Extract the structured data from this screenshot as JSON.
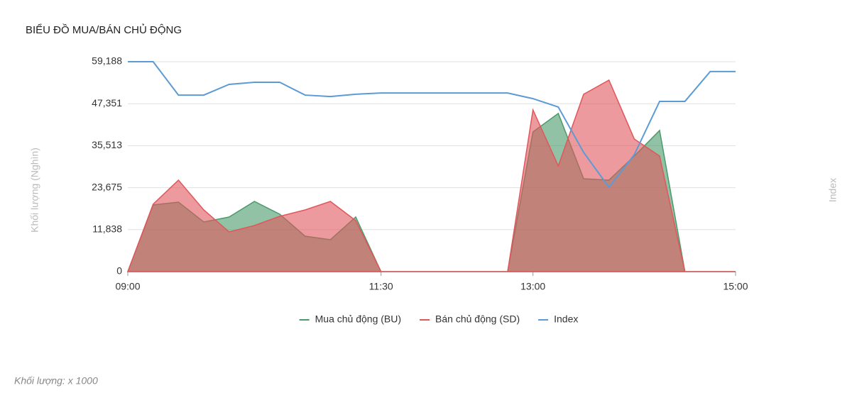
{
  "chart_data": {
    "type": "area",
    "title": "BIỂU ĐỒ MUA/BÁN CHỦ ĐỘNG",
    "y_label": "Khối lượng (Nghìn)",
    "y2_label": "Index",
    "categories": [
      "09:00",
      null,
      null,
      null,
      null,
      null,
      null,
      null,
      null,
      null,
      "11:30",
      null,
      null,
      null,
      null,
      null,
      "13:00",
      null,
      null,
      null,
      null,
      null,
      null,
      null,
      "15:00"
    ],
    "series": [
      {
        "name": "Mua chủ động (BU)",
        "color": "#4a9a6a",
        "values": [
          0,
          18800,
          19600,
          14000,
          15400,
          19800,
          16200,
          10000,
          9000,
          15400,
          0,
          0,
          0,
          0,
          0,
          0,
          39400,
          44600,
          26200,
          25800,
          32600,
          39800,
          0,
          0,
          0
        ]
      },
      {
        "name": "Bán chủ động (SD)",
        "color": "#e0575b",
        "values": [
          0,
          19000,
          25800,
          17400,
          11200,
          13000,
          15600,
          17400,
          19800,
          14400,
          0,
          0,
          0,
          0,
          0,
          0,
          45600,
          29800,
          50000,
          54000,
          37400,
          32600,
          0,
          0,
          0
        ]
      },
      {
        "name": "Index",
        "color": "#5b9bd5",
        "axis": "y2",
        "values": [
          100,
          100,
          84.1,
          84.1,
          89.2,
          90.2,
          90.2,
          84.1,
          83.4,
          84.5,
          85.1,
          85.1,
          85.1,
          85.1,
          85.1,
          85.1,
          82.4,
          78.4,
          56.8,
          40.2,
          55.7,
          81.1,
          81.1,
          95.3,
          95.3
        ]
      }
    ],
    "ylim": [
      0,
      59188
    ],
    "yticks": [
      0,
      {
        "value": 11838,
        "label": "11,838"
      },
      {
        "value": 23675,
        "label": "23,675"
      },
      {
        "value": 35513,
        "label": "35,513"
      },
      {
        "value": 47351,
        "label": "47,351"
      },
      {
        "value": 59188,
        "label": "59,188"
      }
    ],
    "y2lim": [
      0,
      100
    ],
    "grid": true,
    "legend": "bottom"
  },
  "footnote": "Khối lượng: x 1000"
}
